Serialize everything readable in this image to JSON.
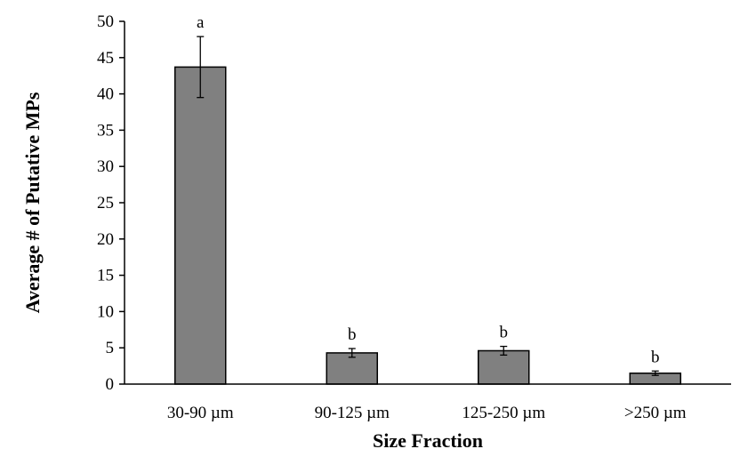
{
  "chart_data": {
    "type": "bar",
    "title": "",
    "xlabel": "Size Fraction",
    "ylabel": "Average # of Putative MPs",
    "ylim": [
      0,
      50
    ],
    "yticks": [
      0,
      5,
      10,
      15,
      20,
      25,
      30,
      35,
      40,
      45,
      50
    ],
    "grid": false,
    "legend": "none",
    "bar_color": "#808080",
    "bar_edge_color": "#000000",
    "categories": [
      "30-90 µm",
      "90-125 µm",
      "125-250 µm",
      ">250 µm"
    ],
    "values": [
      43.7,
      4.3,
      4.6,
      1.5
    ],
    "error": [
      4.2,
      0.6,
      0.6,
      0.3
    ],
    "annotations": [
      "a",
      "b",
      "b",
      "b"
    ]
  }
}
